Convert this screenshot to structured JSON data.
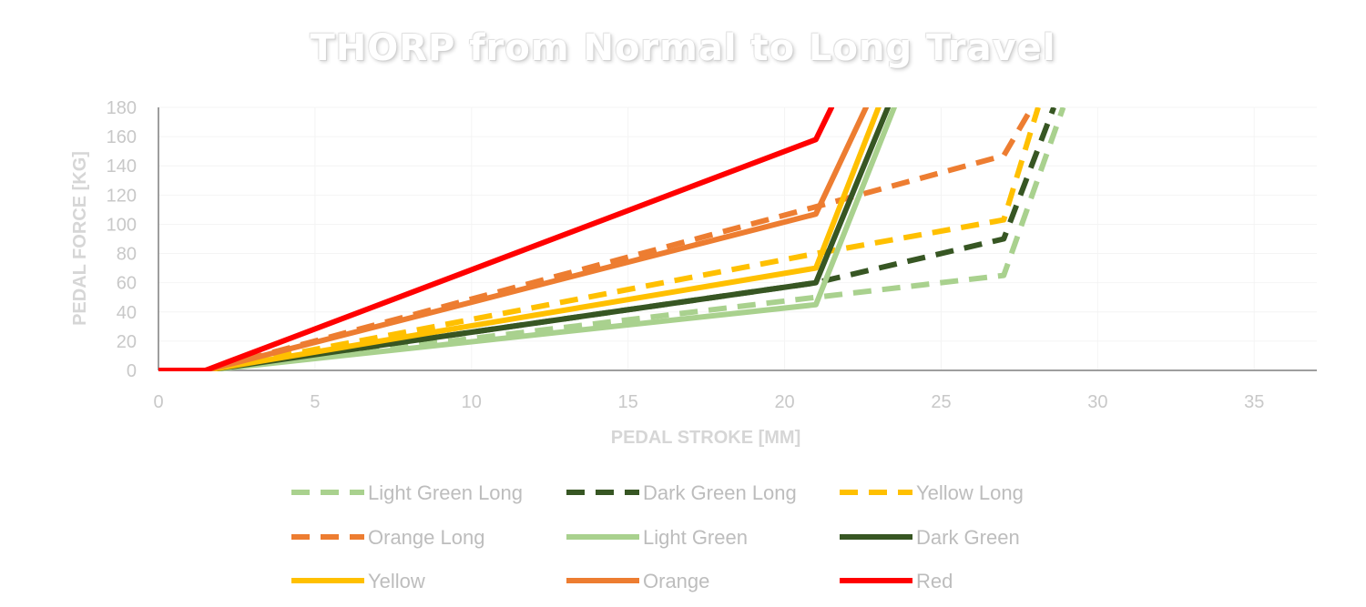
{
  "chart_data": {
    "type": "line",
    "title": "THORP from Normal to Long Travel",
    "xlabel": "PEDAL STROKE [MM]",
    "ylabel": "PEDAL FORCE [KG]",
    "xlim": [
      0,
      37
    ],
    "ylim": [
      0,
      180
    ],
    "xticks": [
      0,
      5,
      10,
      15,
      20,
      25,
      30,
      35
    ],
    "yticks": [
      0,
      20,
      40,
      60,
      80,
      100,
      120,
      140,
      160,
      180
    ],
    "grid": true,
    "legend_position": "bottom",
    "series": [
      {
        "name": "Light Green Long",
        "color": "#a9d18e",
        "dashed": true,
        "points": [
          [
            0,
            0
          ],
          [
            1.5,
            0
          ],
          [
            21,
            50
          ],
          [
            27,
            65
          ],
          [
            28.9,
            180
          ]
        ]
      },
      {
        "name": "Dark Green Long",
        "color": "#375623",
        "dashed": true,
        "points": [
          [
            0,
            0
          ],
          [
            1.5,
            0
          ],
          [
            21,
            60
          ],
          [
            27,
            90
          ],
          [
            28.6,
            180
          ]
        ]
      },
      {
        "name": "Yellow Long",
        "color": "#ffc000",
        "dashed": true,
        "points": [
          [
            0,
            0
          ],
          [
            1.5,
            0
          ],
          [
            21,
            80
          ],
          [
            27,
            103
          ],
          [
            28.1,
            180
          ]
        ]
      },
      {
        "name": "Orange Long",
        "color": "#ed7d31",
        "dashed": true,
        "points": [
          [
            0,
            0
          ],
          [
            1.5,
            0
          ],
          [
            21,
            112
          ],
          [
            27,
            147
          ],
          [
            27.9,
            180
          ]
        ]
      },
      {
        "name": "Light Green",
        "color": "#a9d18e",
        "dashed": false,
        "points": [
          [
            0,
            0
          ],
          [
            1.5,
            0
          ],
          [
            21,
            45
          ],
          [
            23.5,
            180
          ]
        ]
      },
      {
        "name": "Dark Green",
        "color": "#375623",
        "dashed": false,
        "points": [
          [
            0,
            0
          ],
          [
            1.5,
            0
          ],
          [
            21,
            60
          ],
          [
            23.3,
            180
          ]
        ]
      },
      {
        "name": "Yellow",
        "color": "#ffc000",
        "dashed": false,
        "points": [
          [
            0,
            0
          ],
          [
            1.5,
            0
          ],
          [
            21,
            70
          ],
          [
            23.0,
            180
          ]
        ]
      },
      {
        "name": "Orange",
        "color": "#ed7d31",
        "dashed": false,
        "points": [
          [
            0,
            0
          ],
          [
            1.5,
            0
          ],
          [
            21,
            107
          ],
          [
            22.6,
            180
          ]
        ]
      },
      {
        "name": "Red",
        "color": "#ff0000",
        "dashed": false,
        "points": [
          [
            0,
            0
          ],
          [
            1.5,
            0
          ],
          [
            21,
            158
          ],
          [
            21.5,
            180
          ]
        ]
      }
    ]
  }
}
